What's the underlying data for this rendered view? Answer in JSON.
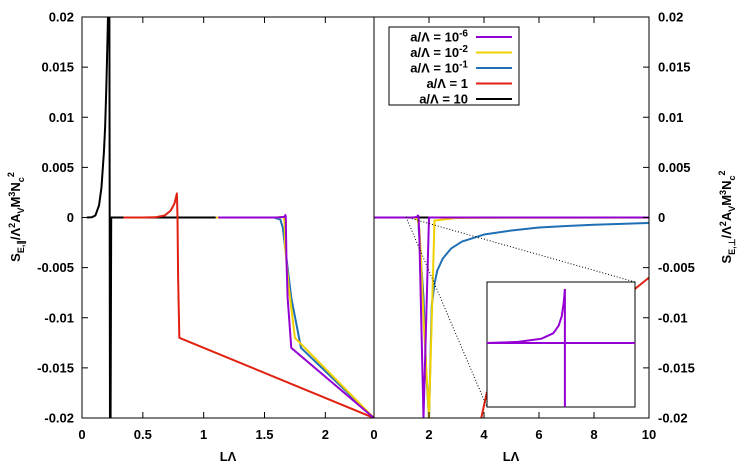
{
  "chart_data": [
    {
      "type": "line",
      "panel": "left",
      "xlabel": "LΛ",
      "ylabel": "S_E,∥/Λ²A_V M³N_c²",
      "xlim": [
        0,
        2.4
      ],
      "ylim": [
        -0.02,
        0.02
      ],
      "xticks": [
        "0",
        "0.5",
        "1",
        "1.5",
        "2"
      ],
      "yticks": [
        "0.02",
        "0.015",
        "0.01",
        "0.005",
        "0",
        "-0.005",
        "-0.01",
        "-0.015",
        "-0.02"
      ],
      "grid": false,
      "series": [
        {
          "name": "a/Λ = 10⁻⁶",
          "color": "#9400d3",
          "x": [
            1.12,
            1.3,
            1.5,
            1.6,
            1.66,
            1.67,
            1.672,
            1.675,
            1.68,
            1.69,
            1.72,
            2.4
          ],
          "y": [
            0,
            0,
            0,
            0,
            6e-05,
            0.00016,
            0.00025,
            0,
            -0.004,
            -0.008,
            -0.013,
            -0.02
          ]
        },
        {
          "name": "a/Λ = 10⁻²",
          "color": "#f0d000",
          "x": [
            1.1,
            1.2,
            1.4,
            1.5,
            1.6,
            1.65,
            1.66,
            1.665,
            1.67,
            1.7,
            1.75,
            2.4
          ],
          "y": [
            0,
            0,
            0,
            0,
            0,
            4e-05,
            0,
            -0.0005,
            -0.003,
            -0.007,
            -0.012,
            -0.02
          ]
        },
        {
          "name": "a/Λ = 10⁻¹",
          "color": "#1f6fb5",
          "x": [
            1.1,
            1.2,
            1.4,
            1.5,
            1.58,
            1.63,
            1.65,
            1.68,
            1.72,
            1.8,
            2.4
          ],
          "y": [
            0,
            0,
            0,
            0,
            0,
            -0.0002,
            -0.001,
            -0.004,
            -0.008,
            -0.013,
            -0.02
          ]
        },
        {
          "name": "a/Λ = 1",
          "color": "#e02010",
          "x": [
            0.34,
            0.5,
            0.6,
            0.68,
            0.73,
            0.76,
            0.78,
            0.785,
            0.79,
            0.8,
            2.4
          ],
          "y": [
            0,
            0,
            2e-05,
            0.0002,
            0.0007,
            0.0014,
            0.0024,
            0,
            -0.006,
            -0.012,
            -0.02
          ]
        },
        {
          "name": "a/Λ = 10",
          "color": "#000000",
          "x": [
            0.04,
            0.08,
            0.11,
            0.14,
            0.16,
            0.18,
            0.19,
            0.2,
            0.21,
            0.215,
            0.22,
            0.225,
            0.23,
            0.235,
            0.24,
            1.1
          ],
          "y": [
            0,
            2e-05,
            0.0002,
            0.0012,
            0.003,
            0.0065,
            0.009,
            0.013,
            0.018,
            0.021,
            0.021,
            0.021,
            -0.02,
            -0.02,
            0,
            0
          ]
        }
      ]
    },
    {
      "type": "line",
      "panel": "right",
      "xlabel": "LΛ",
      "ylabel": "S_E,⊥/Λ²A_V M³N_c²",
      "xlim": [
        0,
        10
      ],
      "ylim": [
        -0.02,
        0.02
      ],
      "xticks": [
        "0",
        "2",
        "4",
        "6",
        "8",
        "10"
      ],
      "yticks": [
        "0.02",
        "0.015",
        "0.01",
        "0.005",
        "0",
        "-0.005",
        "-0.01",
        "-0.015",
        "-0.02"
      ],
      "grid": false,
      "series": [
        {
          "name": "a/Λ = 10⁻⁶",
          "color": "#9400d3",
          "x": [
            0,
            1.0,
            1.4,
            1.55,
            1.6,
            1.62,
            1.65,
            1.7,
            1.8,
            2.0,
            3,
            5,
            7,
            10
          ],
          "y": [
            0,
            0,
            0,
            5e-05,
            0.0002,
            0.0001,
            -0.002,
            -0.008,
            -0.02,
            0,
            0,
            0,
            0,
            0
          ]
        },
        {
          "name": "a/Λ = 10⁻²",
          "color": "#f0d000",
          "x": [
            1.5,
            1.6,
            1.65,
            1.7,
            1.75,
            1.8,
            1.9,
            2.0,
            2.2,
            3,
            5,
            10
          ],
          "y": [
            0,
            -0.0003,
            -0.0012,
            -0.0035,
            -0.007,
            -0.01,
            -0.015,
            -0.02,
            -0.0003,
            -5e-05,
            -2e-05,
            -1e-05
          ]
        },
        {
          "name": "a/Λ = 10⁻¹",
          "color": "#1f6fb5",
          "x": [
            1.6,
            1.8,
            1.9,
            2.0,
            2.1,
            2.2,
            2.3,
            2.5,
            2.8,
            3.2,
            4,
            5,
            6,
            7,
            8,
            9,
            10
          ],
          "y": [
            0,
            -0.008,
            -0.0155,
            -0.02,
            -0.0088,
            -0.0066,
            -0.0053,
            -0.0041,
            -0.0031,
            -0.0024,
            -0.0017,
            -0.0013,
            -0.001,
            -0.00085,
            -0.00072,
            -0.00063,
            -0.00055
          ]
        },
        {
          "name": "a/Λ = 1",
          "color": "#e02010",
          "x": [
            3.9,
            4.1,
            4.5,
            5,
            6,
            7,
            8,
            9,
            10
          ],
          "y": [
            -0.02,
            -0.0175,
            -0.0162,
            -0.015,
            -0.013,
            -0.0115,
            -0.01,
            -0.0082,
            -0.006
          ]
        },
        {
          "name": "a/Λ = 10",
          "color": "#000000",
          "x": [
            0,
            10
          ],
          "y": [
            0,
            0
          ]
        }
      ],
      "inset": {
        "description_series": "a/Λ = 10⁻⁶",
        "x": [
          -1,
          -0.6,
          -0.3,
          -0.15,
          -0.08,
          -0.04,
          -0.015,
          0
        ],
        "y": [
          0,
          0.02,
          0.08,
          0.18,
          0.32,
          0.5,
          0.75,
          1
        ]
      }
    }
  ],
  "legend": {
    "placement": "top-center",
    "entries": [
      {
        "label": "a/Λ = 10⁻⁶",
        "color": "#9400d3"
      },
      {
        "label": "a/Λ = 10⁻²",
        "color": "#f0d000"
      },
      {
        "label": "a/Λ = 10⁻¹",
        "color": "#1f6fb5"
      },
      {
        "label": "a/Λ = 1",
        "color": "#e02010"
      },
      {
        "label": "a/Λ = 10",
        "color": "#000000"
      }
    ]
  }
}
